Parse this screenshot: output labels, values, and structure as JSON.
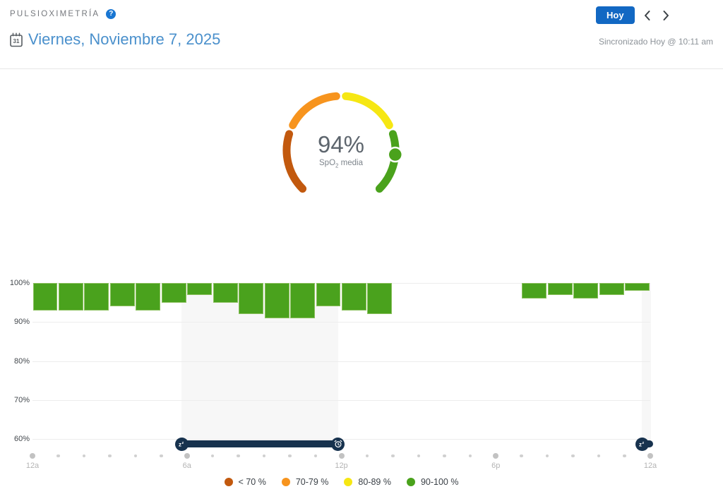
{
  "header": {
    "title": "PULSIOXIMETRÍA",
    "help_glyph": "?",
    "calendar_day": "31",
    "date": "Viernes, Noviembre 7, 2025",
    "today_label": "Hoy",
    "synced": "Sincronizado Hoy @ 10:11 am"
  },
  "gauge": {
    "value": 94,
    "value_label": "94%",
    "sub_prefix": "SpO",
    "sub_script": "2",
    "sub_suffix": " media",
    "min": 60,
    "max": 100
  },
  "chart_data": {
    "type": "bar",
    "description": "Hourly SpO2 range bars (min to max, percent), day view 12a-12a",
    "ylim": [
      60,
      100
    ],
    "yticks": [
      {
        "value": 100,
        "label": "100%"
      },
      {
        "value": 90,
        "label": "90%"
      },
      {
        "value": 80,
        "label": "80%"
      },
      {
        "value": 70,
        "label": "70%"
      },
      {
        "value": 60,
        "label": "60%"
      }
    ],
    "xticks": [
      {
        "hour": 0,
        "label": "12a"
      },
      {
        "hour": 6,
        "label": "6a"
      },
      {
        "hour": 12,
        "label": "12p"
      },
      {
        "hour": 18,
        "label": "6p"
      },
      {
        "hour": 24,
        "label": "12a"
      }
    ],
    "hours_total": 24,
    "bars": [
      {
        "hour": 0,
        "min": 93,
        "max": 100
      },
      {
        "hour": 1,
        "min": 93,
        "max": 100
      },
      {
        "hour": 2,
        "min": 93,
        "max": 100
      },
      {
        "hour": 3,
        "min": 94,
        "max": 100
      },
      {
        "hour": 4,
        "min": 93,
        "max": 100
      },
      {
        "hour": 5,
        "min": 95,
        "max": 100
      },
      {
        "hour": 6,
        "min": 97,
        "max": 100
      },
      {
        "hour": 7,
        "min": 95,
        "max": 100
      },
      {
        "hour": 8,
        "min": 92,
        "max": 100
      },
      {
        "hour": 9,
        "min": 91,
        "max": 100
      },
      {
        "hour": 10,
        "min": 91,
        "max": 100
      },
      {
        "hour": 11,
        "min": 94,
        "max": 100
      },
      {
        "hour": 12,
        "min": 93,
        "max": 100
      },
      {
        "hour": 13,
        "min": 92,
        "max": 100
      },
      {
        "hour": 19,
        "min": 96,
        "max": 100
      },
      {
        "hour": 20,
        "min": 97,
        "max": 100
      },
      {
        "hour": 21,
        "min": 96,
        "max": 100
      },
      {
        "hour": 22,
        "min": 97,
        "max": 100
      },
      {
        "hour": 23,
        "min": 98,
        "max": 100
      }
    ],
    "legend": [
      {
        "label": "< 70 %",
        "from": 60,
        "to": 70,
        "color": "#c2590e"
      },
      {
        "label": "70-79 %",
        "from": 70,
        "to": 80,
        "color": "#f7941e"
      },
      {
        "label": "80-89 %",
        "from": 80,
        "to": 90,
        "color": "#f6e713"
      },
      {
        "label": "90-100 %",
        "from": 90,
        "to": 100,
        "color": "#4aa21c"
      }
    ],
    "legend_position": "bottom-center",
    "grid_on": true,
    "bar_color": "#4aa21d",
    "bar_border_color": "#8bc05e",
    "band_color": "#17324e",
    "sleep_bands": [
      {
        "from_hour": 5.8,
        "to_hour": 11.87,
        "handles": [
          {
            "pos": 5.8,
            "icon": "sleep"
          },
          {
            "pos": 11.87,
            "icon": "alarm"
          }
        ]
      },
      {
        "from_hour": 23.68,
        "to_hour": 24.03,
        "handles": [
          {
            "pos": 23.68,
            "icon": "sleep"
          }
        ]
      }
    ]
  }
}
